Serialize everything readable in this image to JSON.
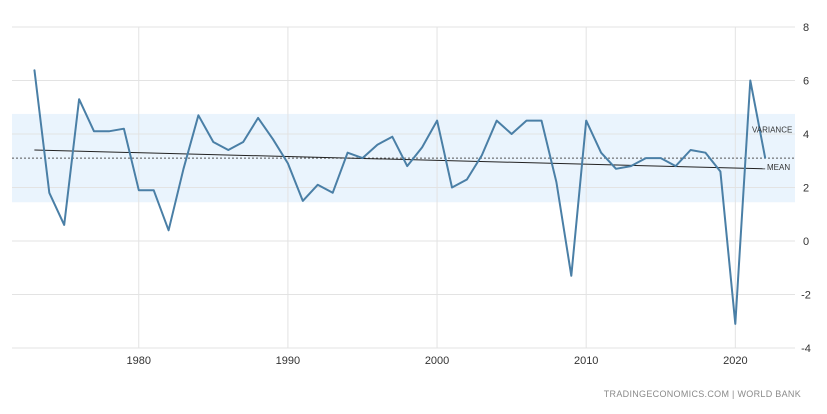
{
  "chart_data": {
    "type": "line",
    "title": "",
    "xlabel": "",
    "ylabel": "",
    "xlim": [
      1971.5,
      2024
    ],
    "ylim": [
      -4,
      8
    ],
    "x_ticks": [
      1980,
      1990,
      2000,
      2010,
      2020
    ],
    "y_ticks": [
      -4,
      -2,
      0,
      2,
      4,
      6,
      8
    ],
    "grid": true,
    "series": [
      {
        "color": "#4a7fa6",
        "x": [
          1973,
          1974,
          1975,
          1976,
          1977,
          1978,
          1979,
          1980,
          1981,
          1982,
          1983,
          1984,
          1985,
          1986,
          1987,
          1988,
          1989,
          1990,
          1991,
          1992,
          1993,
          1994,
          1995,
          1996,
          1997,
          1998,
          1999,
          2000,
          2001,
          2002,
          2003,
          2004,
          2005,
          2006,
          2007,
          2008,
          2009,
          2010,
          2011,
          2012,
          2013,
          2014,
          2015,
          2016,
          2017,
          2018,
          2019,
          2020,
          2021,
          2022
        ],
        "values": [
          6.4,
          1.8,
          0.6,
          5.3,
          4.1,
          4.1,
          4.2,
          1.9,
          1.9,
          0.4,
          2.7,
          4.7,
          3.7,
          3.4,
          3.7,
          4.6,
          3.8,
          2.9,
          1.5,
          2.1,
          1.8,
          3.3,
          3.1,
          3.6,
          3.9,
          2.8,
          3.5,
          4.5,
          2.0,
          2.3,
          3.2,
          4.5,
          4.0,
          4.5,
          4.5,
          2.2,
          -1.3,
          4.5,
          3.3,
          2.7,
          2.8,
          3.1,
          3.1,
          2.8,
          3.4,
          3.3,
          2.6,
          -3.1,
          6.0,
          3.1
        ]
      }
    ],
    "trend": {
      "color": "#222222",
      "x": [
        1973,
        2022
      ],
      "values": [
        3.4,
        2.7
      ]
    },
    "mean": {
      "label": "MEAN",
      "value": 3.1,
      "color": "#555555"
    },
    "variance": {
      "label": "VARIANCE",
      "band": [
        1.45,
        4.75
      ],
      "color": "#eaf4fd"
    },
    "source": "TRADINGECONOMICS.COM  |  WORLD BANK"
  }
}
